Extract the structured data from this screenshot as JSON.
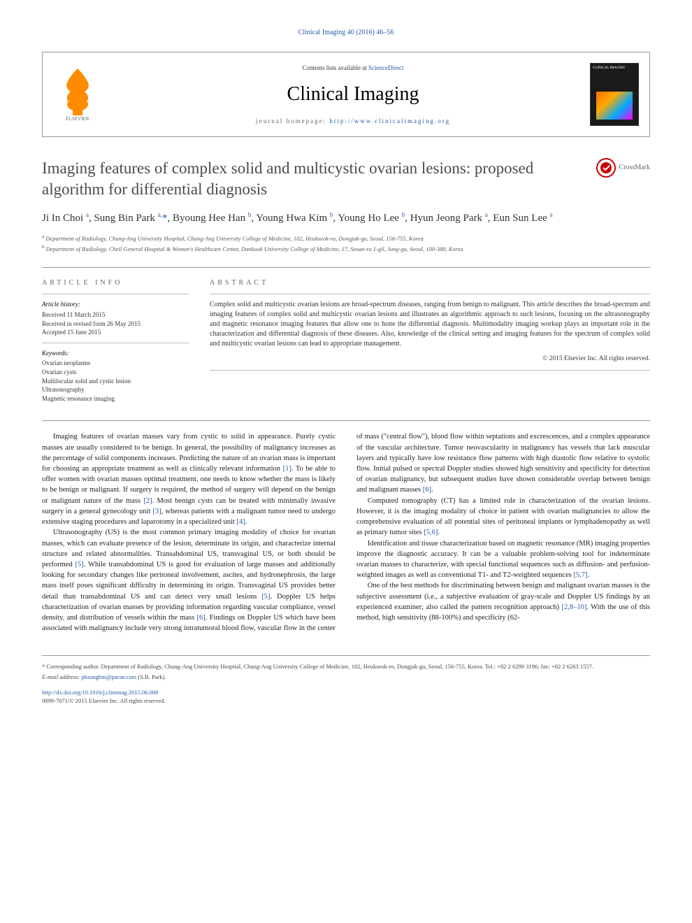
{
  "header": {
    "top_link": "Clinical Imaging 40 (2016) 46–56",
    "contents_prefix": "Contents lists available at ",
    "contents_link": "ScienceDirect",
    "journal_name": "Clinical Imaging",
    "homepage_prefix": "journal homepage: ",
    "homepage_url": "http://www.clinicalimaging.org",
    "cover_title": "CLINICAL IMAGING"
  },
  "crossmark": "CrossMark",
  "title": "Imaging features of complex solid and multicystic ovarian lesions: proposed algorithm for differential diagnosis",
  "authors_html": "Ji In Choi <sup>a</sup>, Sung Bin Park <sup>a,</sup><span class=\"author-link\">*</span>, Byoung Hee Han <sup>b</sup>, Young Hwa Kim <sup>b</sup>, Young Ho Lee <sup>b</sup>, Hyun Jeong Park <sup>a</sup>, Eun Sun Lee <sup>a</sup>",
  "affiliations": {
    "a": "Department of Radiology, Chung-Ang University Hospital, Chung-Ang University College of Medicine, 102, Heukseok-ro, Dongjak-gu, Seoul, 156-755, Korea",
    "b": "Department of Radiology, Cheil General Hospital & Women's Healthcare Center, Dankook University College of Medicine, 17, Seoae-ro 1-gil, Jung-gu, Seoul, 100-380, Korea"
  },
  "article_info": {
    "heading": "ARTICLE INFO",
    "history_head": "Article history:",
    "received": "Received 11 March 2015",
    "revised": "Received in revised form 26 May 2015",
    "accepted": "Accepted 15 June 2015",
    "keywords_head": "Keywords:",
    "keywords": [
      "Ovarian neoplasms",
      "Ovarian cysts",
      "Multilocular solid and cystic lesion",
      "Ultrasonography",
      "Magnetic resonance imaging"
    ]
  },
  "abstract": {
    "heading": "ABSTRACT",
    "text": "Complex solid and multicystic ovarian lesions are broad-spectrum diseases, ranging from benign to malignant. This article describes the broad-spectrum and imaging features of complex solid and multicystic ovarian lesions and illustrates an algorithmic approach to such lesions, focusing on the ultrasonography and magnetic resonance imaging features that allow one to hone the differential diagnosis. Multimodality imaging workup plays an important role in the characterization and differential diagnosis of these diseases. Also, knowledge of the clinical setting and imaging features for the spectrum of complex solid and multicystic ovarian lesions can lead to appropriate management.",
    "copyright": "© 2015 Elsevier Inc. All rights reserved."
  },
  "body": {
    "p1": "Imaging features of ovarian masses vary from cystic to solid in appearance. Purely cystic masses are usually considered to be benign. In general, the possibility of malignancy increases as the percentage of solid components increases. Predicting the nature of an ovarian mass is important for choosing an appropriate treatment as well as clinically relevant information ",
    "c1": "[1]",
    "p1b": ". To be able to offer women with ovarian masses optimal treatment, one needs to know whether the mass is likely to be benign or malignant. If surgery is required, the method of surgery will depend on the benign or malignant nature of the mass ",
    "c2": "[2]",
    "p1c": ". Most benign cysts can be treated with minimally invasive surgery in a general gynecology unit ",
    "c3": "[3]",
    "p1d": ", whereas patients with a malignant tumor need to undergo extensive staging procedures and laparotomy in a specialized unit ",
    "c4": "[4]",
    "p1e": ".",
    "p2": "Ultrasonography (US) is the most common primary imaging modality of choice for ovarian masses, which can evaluate presence of the lesion, determinate its origin, and characterize internal structure and related abnormalities. Transabdominal US, transvaginal US, or both should be performed ",
    "c5": "[5]",
    "p2b": ". While transabdominal US is good for evaluation of large masses and additionally looking for secondary changes like peritoneal involvement, ascites, and hydronephrosis, the large mass itself poses significant difficulty in determining its origin. Transvaginal US provides better detail than transabdominal US and can detect very small lesions ",
    "c5b": "[5]",
    "p2c": ". Doppler US helps characterization of ovarian masses by providing information regarding vascular compliance, vessel density, and distribution of vessels within the mass ",
    "c6": "[6]",
    "p2d": ". Findings on Doppler US which have been associated with malignancy include very strong intratumoral blood flow, vascular flow in the center of mass (\"central flow\"), blood flow within septations and excrescences, and a complex appearance of the vascular architecture. Tumor neovascularity in malignancy has vessels that lack muscular layers and typically have low resistance flow patterns with high diastolic flow relative to systolic flow. Initial pulsed or spectral Doppler studies showed high sensitivity and specificity for detection of ovarian malignancy, but subsequent studies have shown considerable overlap between benign and malignant masses ",
    "c6b": "[6]",
    "p2e": ".",
    "p3": "Computed tomography (CT) has a limited role in characterization of the ovarian lesions. However, it is the imaging modality of choice in patient with ovarian malignancies to allow the comprehensive evaluation of all potential sites of peritoneal implants or lymphadenopathy as well as primary tumor sites ",
    "c56": "[5,6]",
    "p3b": ".",
    "p4": "Identification and tissue characterization based on magnetic resonance (MR) imaging properties improve the diagnostic accuracy. It can be a valuable problem-solving tool for indeterminate ovarian masses to characterize, with special functional sequences such as diffusion- and perfusion-weighted images as well as conventional T1- and T2-weighted sequences ",
    "c57": "[5,7]",
    "p4b": ".",
    "p5": "One of the best methods for discriminating between benign and malignant ovarian masses is the subjective assessment (i.e., a subjective evaluation of gray-scale and Doppler US findings by an experienced examiner; also called the pattern recognition approach) ",
    "c2810": "[2,8–10]",
    "p5b": ". With the use of this method, high sensitivity (88-100%) and specificity (62-"
  },
  "footer": {
    "corresponding_star": "*",
    "corresponding": "Corresponding author. Department of Radiology, Chung-Ang University Hospital, Chung-Ang University College of Medicine, 102, Heukseok-ro, Dongjak-gu, Seoul, 156-755, Korea. Tel.: +82 2 6299 3196; fax: +82 2 6263 1557.",
    "email_label": "E-mail address: ",
    "email": "pksungbin@paran.com",
    "email_suffix": " (S.B. Park).",
    "doi": "http://dx.doi.org/10.1016/j.clinimag.2015.06.008",
    "issn_line": "0899-7071/© 2015 Elsevier Inc. All rights reserved."
  },
  "colors": {
    "link": "#2659a6",
    "text": "#222222",
    "heading_gray": "#4a4a4a",
    "border": "#999999",
    "elsevier_orange": "#ff8c00"
  }
}
